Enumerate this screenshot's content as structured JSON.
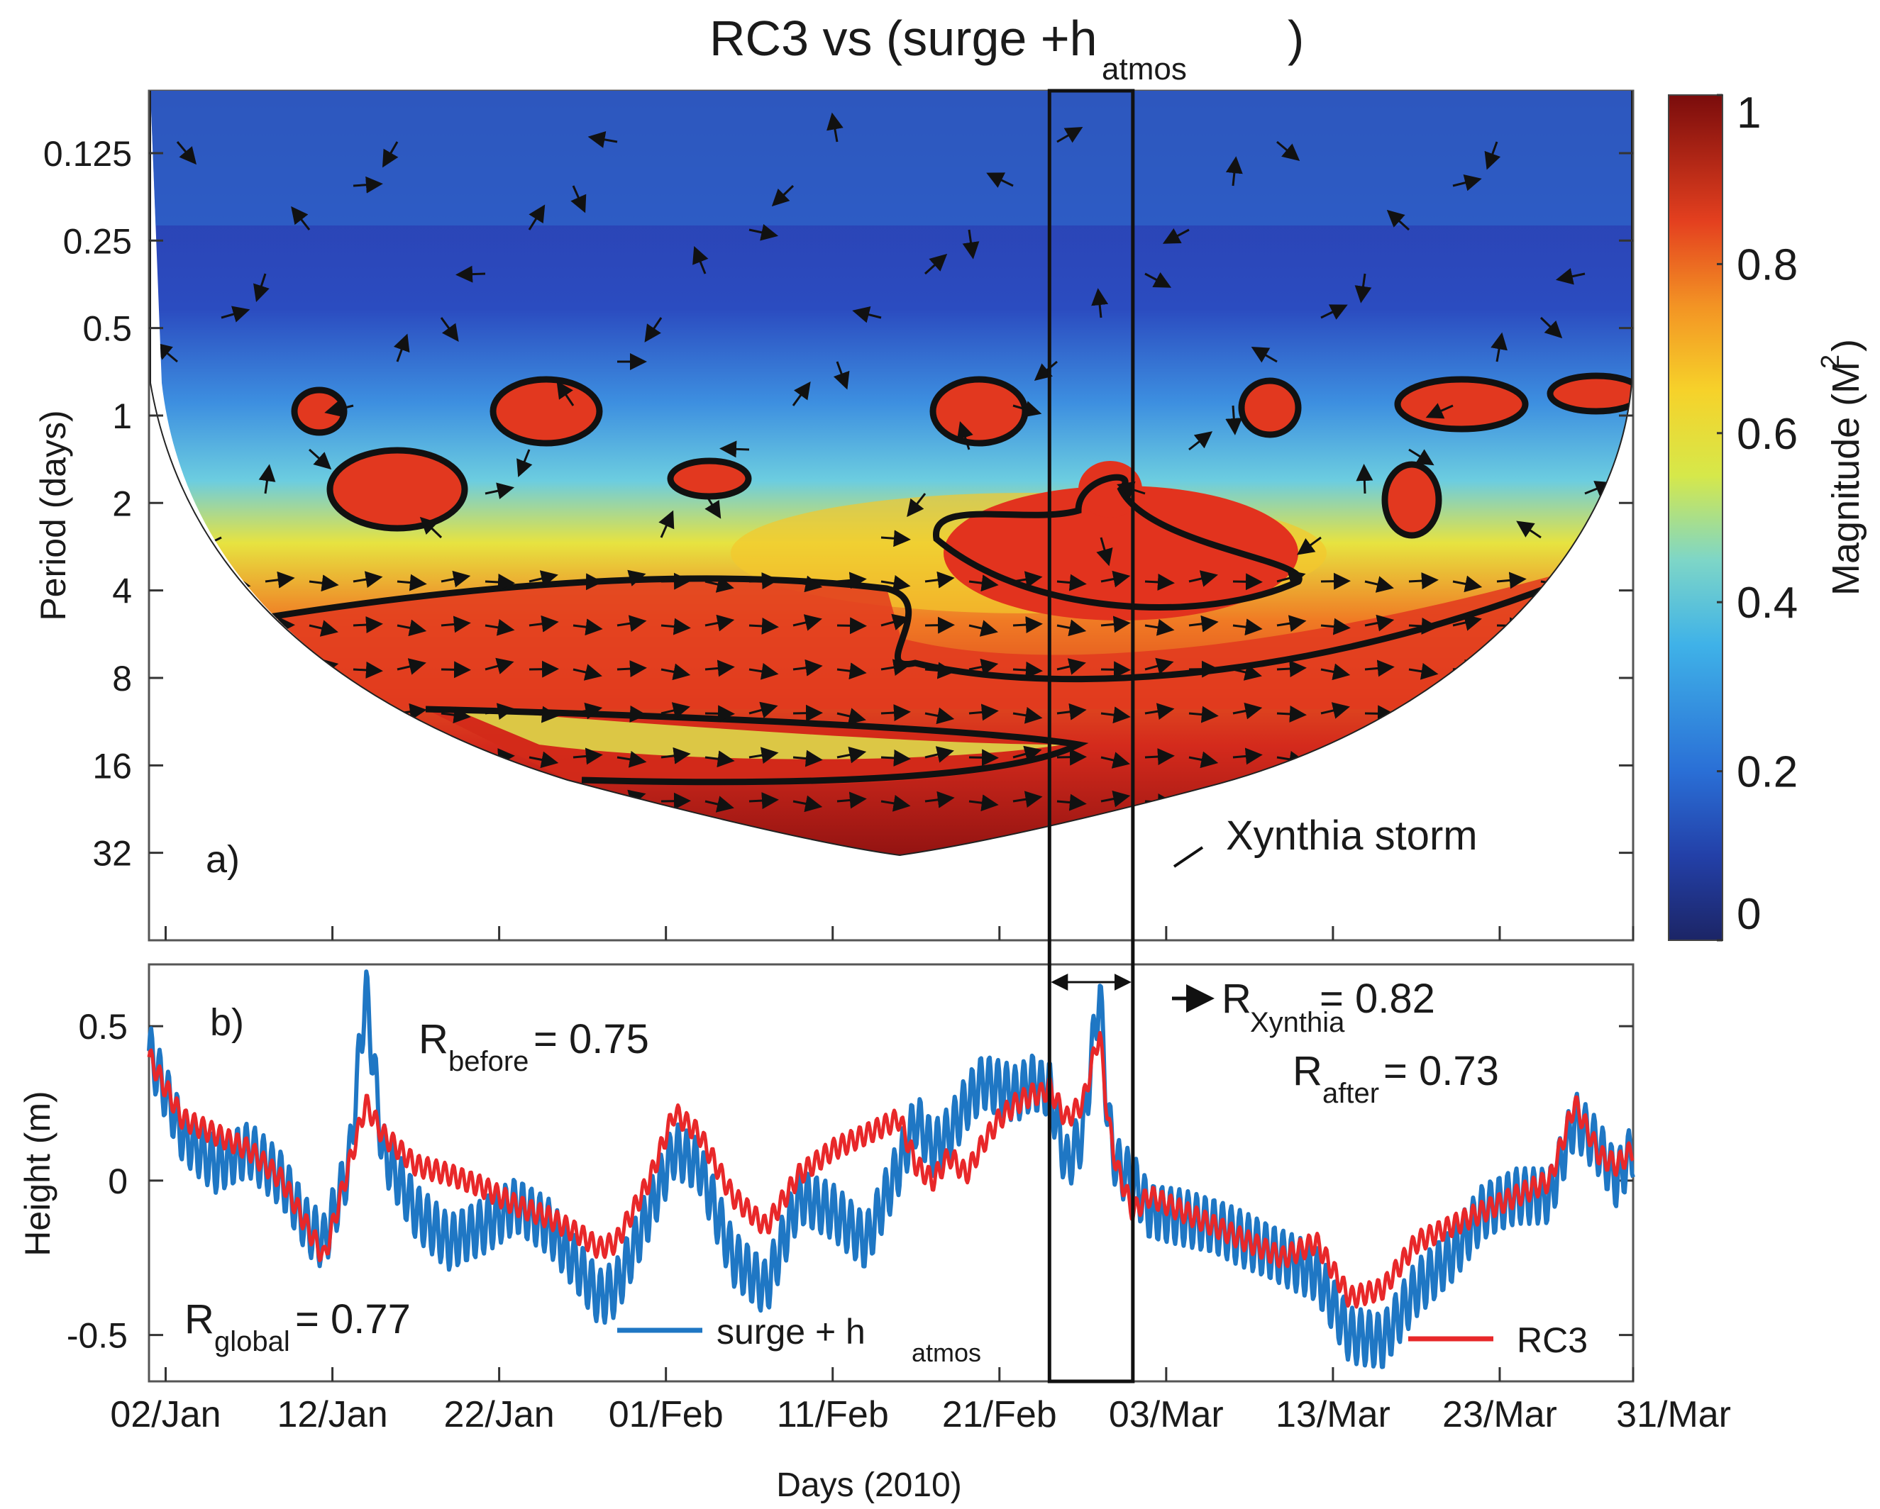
{
  "colors": {
    "blue_series": "#1f77c4",
    "red_series": "#e8282a",
    "axis": "#333333",
    "contour": "#111111"
  },
  "chart_data": [
    {
      "panel": "a",
      "type": "heatmap",
      "title_main": "RC3 vs (surge +h",
      "title_sub": "atmos",
      "title_close": ")",
      "panel_label": "a)",
      "ylabel": "Period (days)",
      "yscale": "log2",
      "yticks": [
        0.125,
        0.25,
        0.5,
        1,
        2,
        4,
        8,
        16,
        32
      ],
      "ytick_labels": [
        "0.125",
        "0.25",
        "0.5",
        "1",
        "2",
        "4",
        "8",
        "16",
        "32"
      ],
      "xlim_days": [
        0,
        89
      ],
      "colorbar": {
        "label": "Magnitude (M",
        "label_sup": "2",
        "label_close": ")",
        "range": [
          0,
          1
        ],
        "ticks": [
          0,
          0.2,
          0.4,
          0.6,
          0.8,
          1
        ],
        "tick_labels": [
          "0",
          "0.2",
          "0.4",
          "0.6",
          "0.8",
          "1"
        ]
      },
      "regions": [
        {
          "name": "long-period coherence band",
          "period_range": [
            4,
            40
          ],
          "day_range": [
            8,
            89
          ],
          "magnitude": 0.9
        },
        {
          "name": "Xynthia coherence island",
          "period_range": [
            2,
            5
          ],
          "day_range": [
            46,
            68
          ],
          "magnitude": 0.95
        },
        {
          "name": "diurnal patches",
          "period_range": [
            0.8,
            1.6
          ],
          "day_range": [
            0,
            89
          ],
          "magnitude": 0.75
        },
        {
          "name": "semi-diurnal background",
          "period_range": [
            0.125,
            0.5
          ],
          "day_range": [
            0,
            89
          ],
          "magnitude": 0.15
        }
      ],
      "annotation": "Xynthia storm"
    },
    {
      "panel": "b",
      "type": "line",
      "panel_label": "b)",
      "ylabel": "Height (m)",
      "xlabel": "Days (2010)",
      "ylim": [
        -0.65,
        0.7
      ],
      "yticks": [
        -0.5,
        0,
        0.5
      ],
      "ytick_labels": [
        "-0.5",
        "0",
        "0.5"
      ],
      "xlim_days": [
        0,
        89
      ],
      "xtick_labels": [
        "02/Jan",
        "12/Jan",
        "22/Jan",
        "01/Feb",
        "11/Feb",
        "21/Feb",
        "03/Mar",
        "13/Mar",
        "23/Mar",
        "31/Mar"
      ],
      "xtick_days": [
        1,
        11,
        21,
        31,
        41,
        51,
        61,
        71,
        81,
        89
      ],
      "xynthia_window_days": [
        54,
        59
      ],
      "series": [
        {
          "name": "surge + h",
          "name_sub": "atmos",
          "color": "#1f77c4",
          "x": [
            0,
            2,
            4,
            6,
            8,
            9.5,
            10.5,
            12,
            13,
            14,
            16,
            18,
            20,
            22,
            24,
            26,
            27,
            28,
            30,
            31.5,
            33,
            35,
            37,
            39,
            41,
            43,
            45,
            46,
            47,
            48,
            49,
            50,
            51,
            52,
            53,
            53.5,
            54,
            55,
            56,
            57,
            57.5,
            58,
            59,
            60,
            62,
            64,
            66,
            68,
            70,
            72,
            74,
            76,
            78,
            80,
            82,
            84,
            85.5,
            87,
            88,
            89
          ],
          "values": [
            0.42,
            0.15,
            0.05,
            0.1,
            0.0,
            -0.15,
            -0.2,
            0.05,
            0.62,
            0.1,
            -0.1,
            -0.2,
            -0.15,
            -0.08,
            -0.15,
            -0.3,
            -0.38,
            -0.35,
            -0.1,
            0.1,
            0.05,
            -0.25,
            -0.35,
            -0.05,
            -0.1,
            -0.2,
            0.05,
            0.2,
            0.1,
            0.15,
            0.25,
            0.32,
            0.3,
            0.28,
            0.32,
            0.3,
            0.3,
            0.05,
            0.15,
            0.62,
            0.2,
            0.05,
            0.0,
            -0.1,
            -0.12,
            -0.15,
            -0.2,
            -0.25,
            -0.3,
            -0.5,
            -0.52,
            -0.35,
            -0.25,
            -0.1,
            -0.05,
            -0.05,
            0.2,
            0.1,
            0.0,
            0.1
          ]
        },
        {
          "name": "RC3",
          "color": "#e8282a",
          "x": [
            0,
            2,
            4,
            6,
            8,
            9.5,
            10.5,
            12,
            13,
            14,
            16,
            18,
            20,
            22,
            24,
            26,
            27,
            28,
            30,
            31.5,
            33,
            35,
            37,
            39,
            41,
            43,
            45,
            46,
            47,
            48,
            49,
            50,
            51,
            52,
            53,
            53.5,
            54,
            55,
            56,
            57,
            57.5,
            58,
            59,
            60,
            62,
            64,
            66,
            68,
            70,
            72,
            74,
            76,
            78,
            80,
            82,
            84,
            85.5,
            87,
            88,
            89
          ],
          "values": [
            0.4,
            0.2,
            0.15,
            0.1,
            0.0,
            -0.15,
            -0.25,
            0.05,
            0.25,
            0.15,
            0.05,
            0.02,
            -0.02,
            -0.08,
            -0.12,
            -0.18,
            -0.22,
            -0.2,
            0.0,
            0.22,
            0.15,
            -0.05,
            -0.15,
            0.02,
            0.1,
            0.15,
            0.2,
            0.05,
            0.0,
            0.08,
            0.02,
            0.12,
            0.2,
            0.25,
            0.28,
            0.28,
            0.3,
            0.2,
            0.25,
            0.48,
            0.2,
            0.05,
            -0.1,
            -0.05,
            -0.1,
            -0.15,
            -0.2,
            -0.25,
            -0.2,
            -0.38,
            -0.35,
            -0.2,
            -0.15,
            -0.1,
            -0.05,
            0.0,
            0.25,
            0.08,
            0.05,
            0.1
          ]
        }
      ],
      "annotations": {
        "r_global": {
          "label": "R",
          "sub": "global",
          "value": "= 0.77"
        },
        "r_before": {
          "label": "R",
          "sub": "before",
          "value": "= 0.75"
        },
        "r_xynthia": {
          "label": "R",
          "sub": "Xynthia",
          "value": "= 0.82"
        },
        "r_after": {
          "label": "R",
          "sub": "after",
          "value": "= 0.73"
        }
      }
    }
  ]
}
